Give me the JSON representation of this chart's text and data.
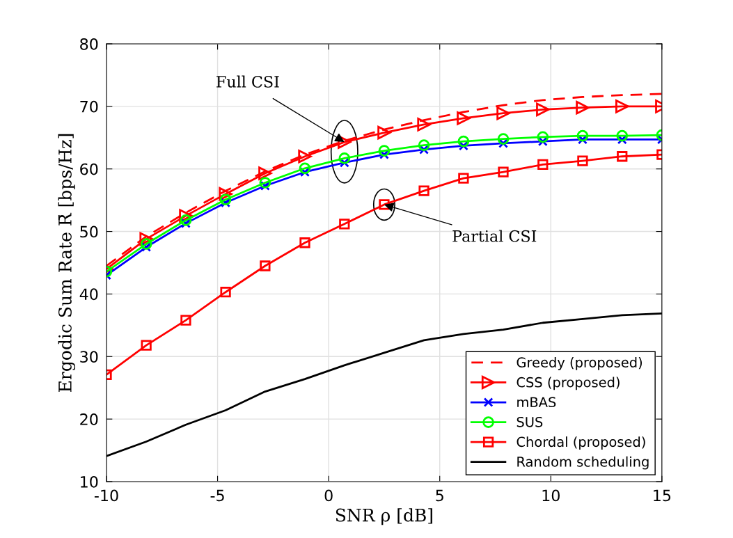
{
  "chart_data": {
    "type": "line",
    "xlabel": "SNR ρ [dB]",
    "ylabel": "Ergodic Sum Rate R̄ [bps/Hz]",
    "x": [
      -10,
      -8.21,
      -6.43,
      -4.64,
      -2.86,
      -1.07,
      0.71,
      2.5,
      4.29,
      6.07,
      7.86,
      9.64,
      11.43,
      13.21,
      15
    ],
    "series": [
      {
        "name": "Greedy (proposed)",
        "color": "#ff0000",
        "marker": "none",
        "line_style": "dashed",
        "values": [
          44.5,
          49.2,
          53.0,
          56.5,
          59.6,
          62.3,
          64.5,
          66.3,
          67.8,
          69.1,
          70.2,
          71.0,
          71.5,
          71.8,
          72.0
        ]
      },
      {
        "name": "CSS (proposed)",
        "color": "#ff0000",
        "marker": "triangle",
        "line_style": "solid",
        "values": [
          44.0,
          48.8,
          52.5,
          56.0,
          59.3,
          62.0,
          64.3,
          65.8,
          67.1,
          68.1,
          68.9,
          69.5,
          69.8,
          70.0,
          70.0
        ]
      },
      {
        "name": "mBAS",
        "color": "#0000ff",
        "marker": "cross",
        "line_style": "solid",
        "values": [
          43.0,
          47.5,
          51.3,
          54.6,
          57.3,
          59.5,
          61.0,
          62.3,
          63.1,
          63.7,
          64.1,
          64.4,
          64.7,
          64.7,
          64.7
        ]
      },
      {
        "name": "SUS",
        "color": "#00ff00",
        "marker": "circle",
        "line_style": "solid",
        "values": [
          43.6,
          48.0,
          51.8,
          55.1,
          57.8,
          60.1,
          61.7,
          62.9,
          63.8,
          64.4,
          64.8,
          65.1,
          65.3,
          65.3,
          65.4
        ]
      },
      {
        "name": "Chordal (proposed)",
        "color": "#ff0000",
        "marker": "square",
        "line_style": "solid",
        "values": [
          27.1,
          31.8,
          35.8,
          40.3,
          44.5,
          48.2,
          51.2,
          54.3,
          56.5,
          58.5,
          59.5,
          60.7,
          61.3,
          62.0,
          62.3
        ]
      },
      {
        "name": "Random scheduling",
        "color": "#000000",
        "marker": "none",
        "line_style": "solid",
        "values": [
          14.1,
          16.4,
          19.1,
          21.4,
          24.4,
          26.4,
          28.6,
          30.6,
          32.6,
          33.6,
          34.3,
          35.4,
          36.0,
          36.6,
          36.9
        ]
      }
    ],
    "annotations": [
      {
        "text": "Full CSI",
        "x": 0.71,
        "y": 64.3
      },
      {
        "text": "Partial CSI",
        "x": 2.5,
        "y": 54.3
      }
    ],
    "xlim": [
      -10,
      15
    ],
    "xticks": [
      {
        "value": -10,
        "label": "-10"
      },
      {
        "value": -5,
        "label": "-5"
      },
      0,
      5,
      10,
      15
    ],
    "ylim": [
      10,
      80
    ],
    "yticks": [
      10,
      20,
      30,
      40,
      50,
      60,
      70,
      80
    ],
    "grid": true,
    "legend": "bottom right"
  }
}
